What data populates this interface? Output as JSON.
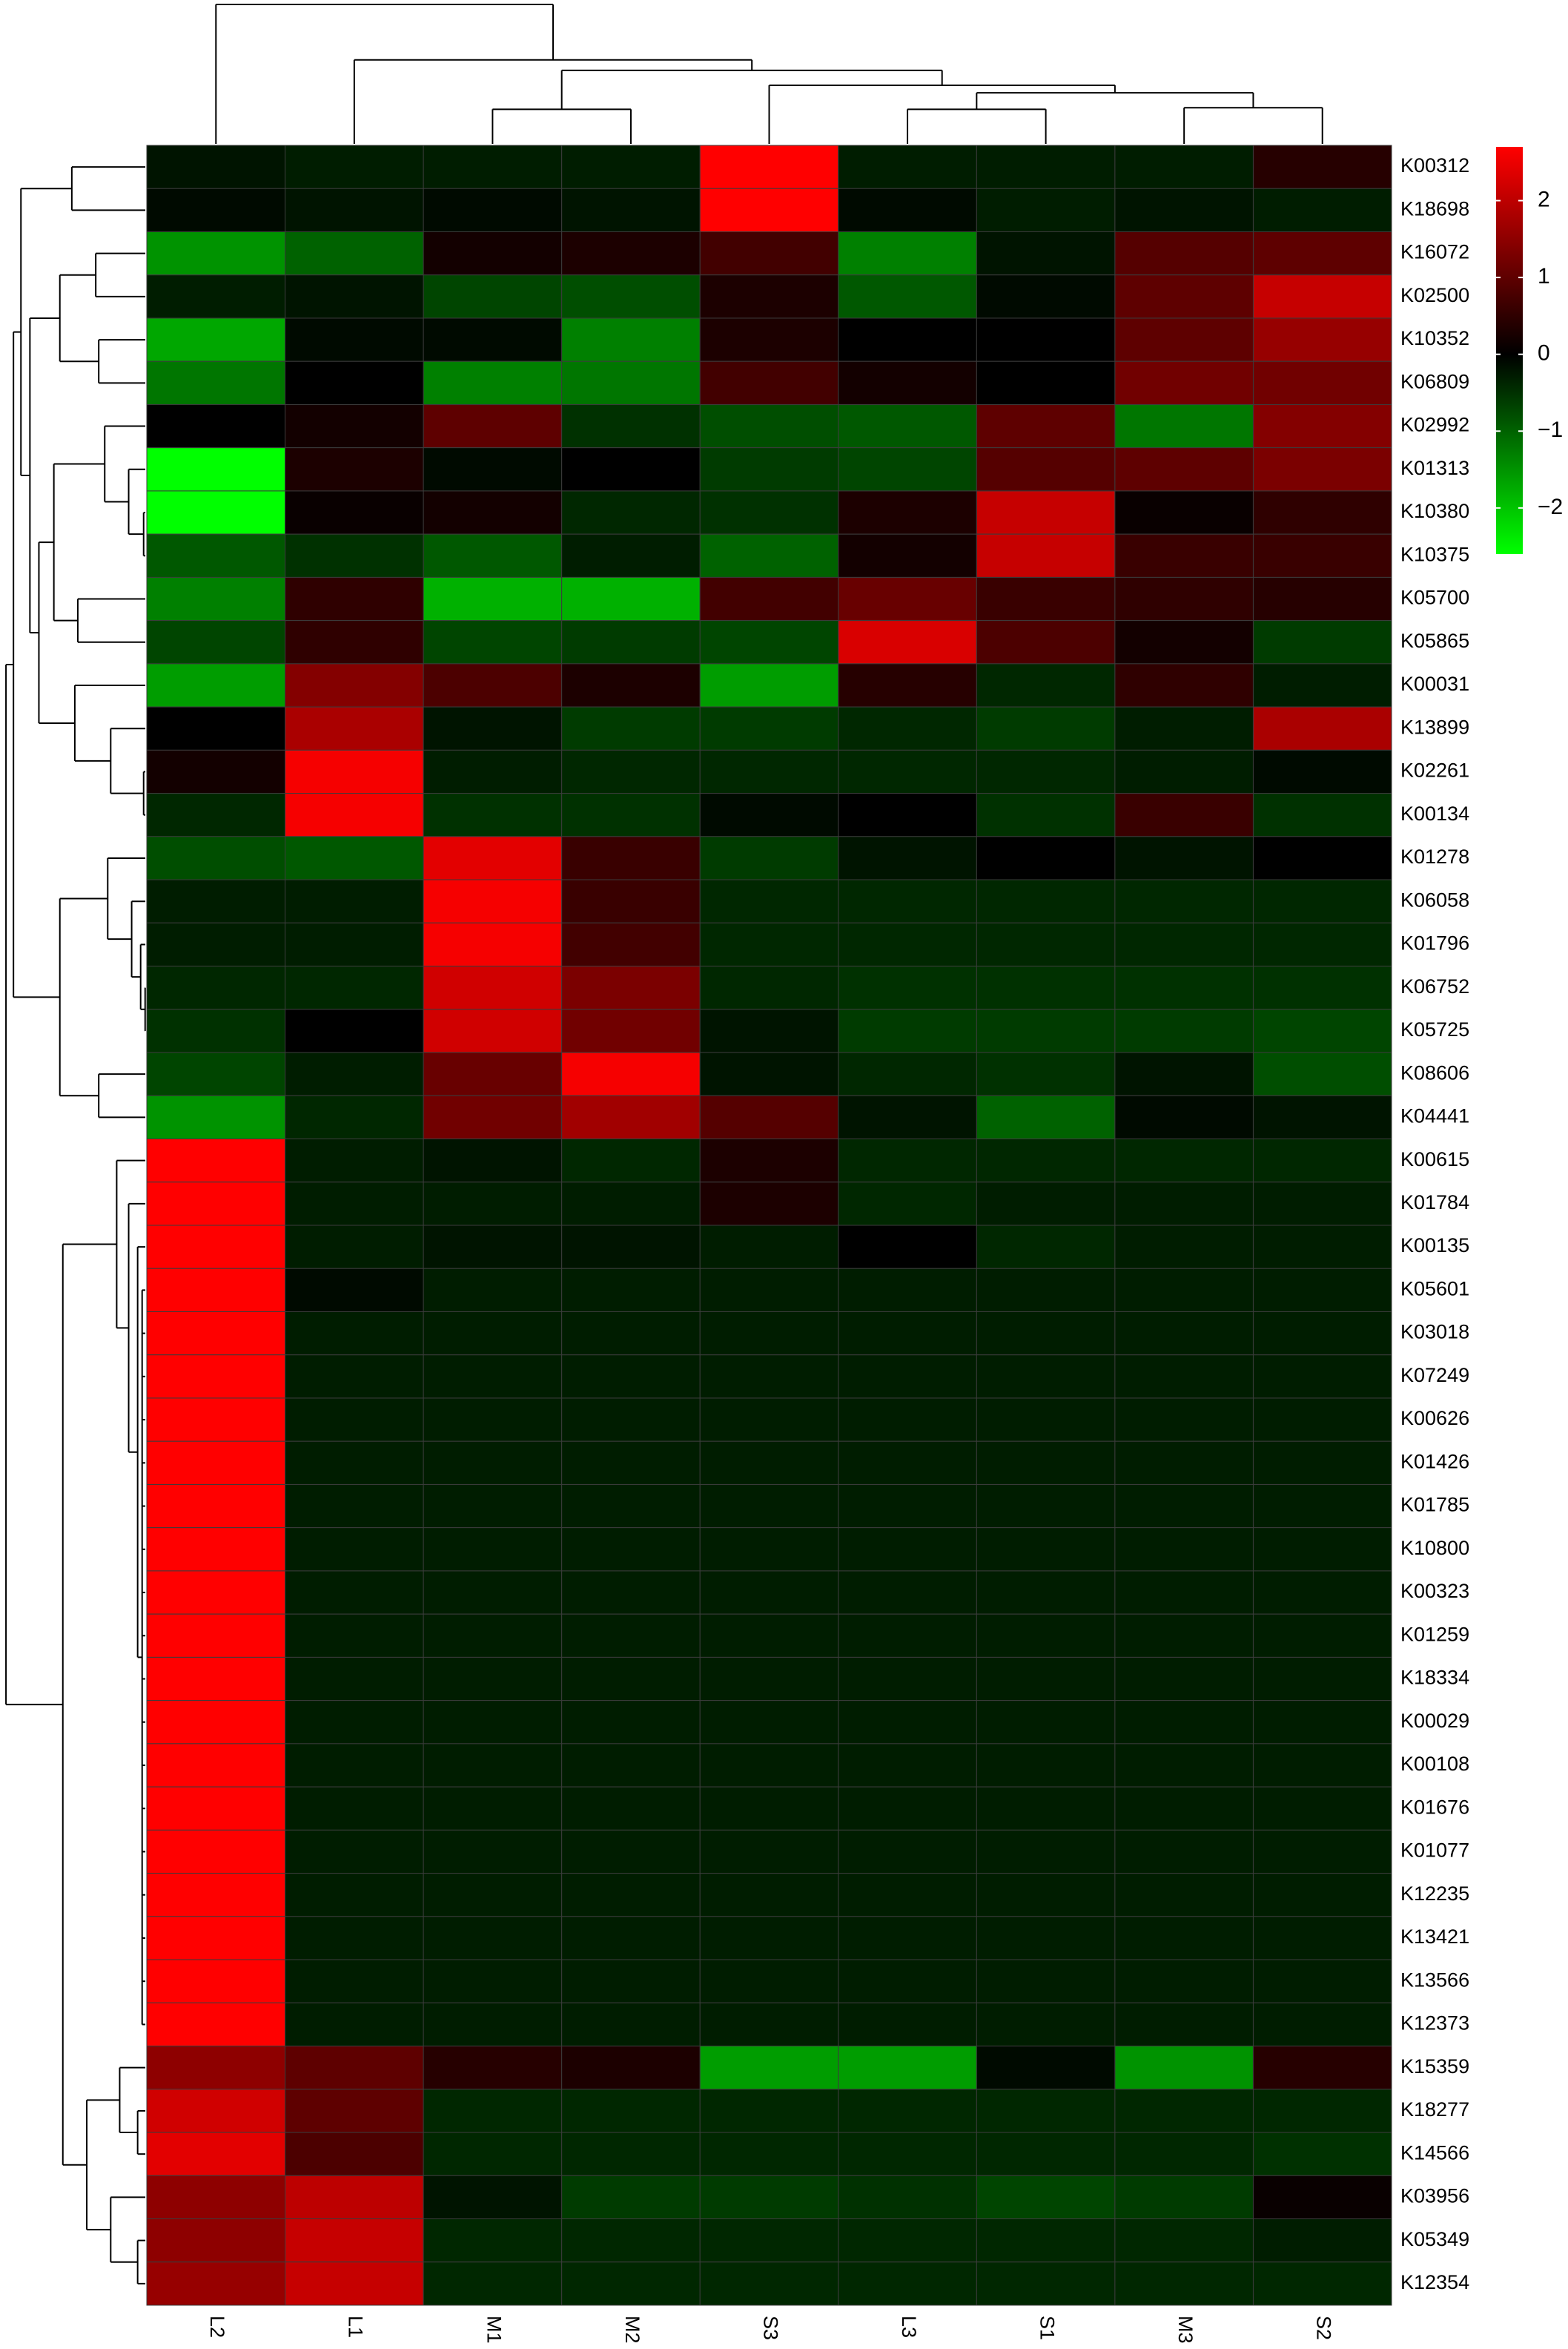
{
  "chart_data": {
    "type": "heatmap",
    "x": [
      "L2",
      "L1",
      "M1",
      "M2",
      "S3",
      "L3",
      "S1",
      "M3",
      "S2"
    ],
    "y": [
      "K00312",
      "K18698",
      "K16072",
      "K02500",
      "K10352",
      "K06809",
      "K02992",
      "K01313",
      "K10380",
      "K10375",
      "K05700",
      "K05865",
      "K00031",
      "K13899",
      "K02261",
      "K00134",
      "K01278",
      "K06058",
      "K01796",
      "K06752",
      "K05725",
      "K08606",
      "K04441",
      "K00615",
      "K01784",
      "K00135",
      "K05601",
      "K03018",
      "K07249",
      "K00626",
      "K01426",
      "K01785",
      "K10800",
      "K00323",
      "K01259",
      "K18334",
      "K00029",
      "K00108",
      "K01676",
      "K01077",
      "K12235",
      "K13421",
      "K13566",
      "K12373",
      "K15359",
      "K18277",
      "K14566",
      "K03956",
      "K05349",
      "K12354"
    ],
    "values": [
      [
        -0.2,
        -0.3,
        -0.3,
        -0.3,
        2.7,
        -0.3,
        -0.3,
        -0.3,
        0.4
      ],
      [
        -0.1,
        -0.2,
        -0.1,
        -0.2,
        2.7,
        -0.1,
        -0.3,
        -0.2,
        -0.3
      ],
      [
        -1.5,
        -1.0,
        0.2,
        0.3,
        0.7,
        -1.3,
        -0.2,
        0.9,
        1.0
      ],
      [
        -0.3,
        -0.2,
        -0.7,
        -0.8,
        0.3,
        -0.9,
        -0.1,
        1.0,
        2.1
      ],
      [
        -1.7,
        -0.1,
        -0.1,
        -1.3,
        0.3,
        0.0,
        0.0,
        1.0,
        1.6
      ],
      [
        -1.2,
        0.0,
        -1.3,
        -1.2,
        0.7,
        0.2,
        0.0,
        1.2,
        1.2
      ],
      [
        0.0,
        0.2,
        1.0,
        -0.5,
        -0.8,
        -0.9,
        1.0,
        -1.2,
        1.4
      ],
      [
        -2.6,
        0.3,
        -0.1,
        0.0,
        -0.6,
        -0.7,
        0.9,
        1.0,
        1.3
      ],
      [
        -2.6,
        0.1,
        0.2,
        -0.4,
        -0.5,
        0.3,
        2.1,
        0.1,
        0.5
      ],
      [
        -0.9,
        -0.5,
        -0.9,
        -0.3,
        -1.0,
        0.2,
        2.1,
        0.6,
        0.6
      ],
      [
        -1.3,
        0.5,
        -1.8,
        -1.8,
        0.7,
        1.1,
        0.6,
        0.5,
        0.4
      ],
      [
        -0.7,
        0.5,
        -0.7,
        -0.6,
        -0.7,
        2.3,
        0.8,
        0.2,
        -0.6
      ],
      [
        -1.6,
        1.4,
        0.8,
        0.3,
        -1.6,
        0.4,
        -0.4,
        0.5,
        -0.3
      ],
      [
        0.0,
        1.8,
        -0.2,
        -0.6,
        -0.6,
        -0.4,
        -0.6,
        -0.3,
        1.8
      ],
      [
        0.2,
        2.6,
        -0.3,
        -0.4,
        -0.4,
        -0.4,
        -0.4,
        -0.3,
        -0.1
      ],
      [
        -0.4,
        2.6,
        -0.5,
        -0.5,
        -0.1,
        0.0,
        -0.5,
        0.6,
        -0.5
      ],
      [
        -0.8,
        -0.9,
        2.4,
        0.6,
        -0.6,
        -0.2,
        0.0,
        -0.2,
        0.0
      ],
      [
        -0.3,
        -0.3,
        2.6,
        0.6,
        -0.4,
        -0.4,
        -0.4,
        -0.4,
        -0.4
      ],
      [
        -0.3,
        -0.3,
        2.6,
        0.7,
        -0.4,
        -0.4,
        -0.4,
        -0.4,
        -0.4
      ],
      [
        -0.4,
        -0.4,
        2.2,
        1.3,
        -0.4,
        -0.5,
        -0.5,
        -0.5,
        -0.5
      ],
      [
        -0.5,
        0.0,
        2.2,
        1.2,
        -0.2,
        -0.6,
        -0.6,
        -0.6,
        -0.7
      ],
      [
        -0.7,
        -0.3,
        1.1,
        2.6,
        -0.2,
        -0.4,
        -0.5,
        -0.2,
        -0.8
      ],
      [
        -1.5,
        -0.4,
        1.2,
        1.7,
        0.9,
        -0.2,
        -1.0,
        -0.1,
        -0.2
      ],
      [
        2.7,
        -0.3,
        -0.2,
        -0.4,
        0.3,
        -0.4,
        -0.4,
        -0.4,
        -0.4
      ],
      [
        2.7,
        -0.3,
        -0.3,
        -0.3,
        0.3,
        -0.4,
        -0.3,
        -0.3,
        -0.3
      ],
      [
        2.7,
        -0.3,
        -0.2,
        -0.2,
        -0.3,
        0.0,
        -0.4,
        -0.3,
        -0.3
      ],
      [
        2.7,
        -0.1,
        -0.3,
        -0.3,
        -0.3,
        -0.3,
        -0.3,
        -0.3,
        -0.3
      ],
      [
        2.7,
        -0.3,
        -0.3,
        -0.3,
        -0.3,
        -0.3,
        -0.3,
        -0.3,
        -0.3
      ],
      [
        2.7,
        -0.3,
        -0.3,
        -0.3,
        -0.3,
        -0.3,
        -0.3,
        -0.3,
        -0.3
      ],
      [
        2.7,
        -0.3,
        -0.3,
        -0.3,
        -0.3,
        -0.3,
        -0.3,
        -0.3,
        -0.3
      ],
      [
        2.7,
        -0.3,
        -0.3,
        -0.3,
        -0.3,
        -0.3,
        -0.3,
        -0.3,
        -0.3
      ],
      [
        2.7,
        -0.3,
        -0.3,
        -0.3,
        -0.3,
        -0.3,
        -0.3,
        -0.3,
        -0.3
      ],
      [
        2.7,
        -0.3,
        -0.3,
        -0.3,
        -0.3,
        -0.3,
        -0.3,
        -0.3,
        -0.3
      ],
      [
        2.7,
        -0.3,
        -0.3,
        -0.3,
        -0.3,
        -0.3,
        -0.3,
        -0.3,
        -0.3
      ],
      [
        2.7,
        -0.3,
        -0.3,
        -0.3,
        -0.3,
        -0.3,
        -0.3,
        -0.3,
        -0.3
      ],
      [
        2.7,
        -0.3,
        -0.3,
        -0.3,
        -0.3,
        -0.3,
        -0.3,
        -0.3,
        -0.3
      ],
      [
        2.7,
        -0.3,
        -0.3,
        -0.3,
        -0.3,
        -0.3,
        -0.3,
        -0.3,
        -0.3
      ],
      [
        2.7,
        -0.3,
        -0.3,
        -0.3,
        -0.3,
        -0.3,
        -0.3,
        -0.3,
        -0.3
      ],
      [
        2.7,
        -0.3,
        -0.3,
        -0.3,
        -0.3,
        -0.3,
        -0.3,
        -0.3,
        -0.3
      ],
      [
        2.7,
        -0.3,
        -0.3,
        -0.3,
        -0.3,
        -0.3,
        -0.3,
        -0.3,
        -0.3
      ],
      [
        2.7,
        -0.3,
        -0.3,
        -0.3,
        -0.3,
        -0.3,
        -0.3,
        -0.3,
        -0.3
      ],
      [
        2.7,
        -0.3,
        -0.3,
        -0.3,
        -0.3,
        -0.3,
        -0.3,
        -0.3,
        -0.3
      ],
      [
        2.7,
        -0.3,
        -0.3,
        -0.3,
        -0.3,
        -0.3,
        -0.3,
        -0.3,
        -0.3
      ],
      [
        2.7,
        -0.3,
        -0.3,
        -0.3,
        -0.3,
        -0.3,
        -0.3,
        -0.3,
        -0.3
      ],
      [
        1.5,
        1.0,
        0.4,
        0.3,
        -1.6,
        -1.6,
        -0.1,
        -1.5,
        0.4
      ],
      [
        2.2,
        1.0,
        -0.4,
        -0.4,
        -0.4,
        -0.4,
        -0.4,
        -0.4,
        -0.4
      ],
      [
        2.4,
        0.8,
        -0.4,
        -0.4,
        -0.4,
        -0.4,
        -0.4,
        -0.4,
        -0.5
      ],
      [
        1.5,
        2.0,
        -0.2,
        -0.6,
        -0.6,
        -0.5,
        -0.7,
        -0.6,
        0.1
      ],
      [
        1.5,
        2.1,
        -0.4,
        -0.4,
        -0.4,
        -0.4,
        -0.4,
        -0.4,
        -0.3
      ],
      [
        1.6,
        2.1,
        -0.4,
        -0.4,
        -0.4,
        -0.4,
        -0.4,
        -0.4,
        -0.4
      ]
    ],
    "zlim": [
      -2.6,
      2.7
    ],
    "zticks": [
      2,
      1,
      0,
      {
        "value": -1,
        "label": "−1"
      },
      {
        "value": -2,
        "label": "−2"
      }
    ],
    "colors": [
      "#00ff00",
      "#000000",
      "#ff0000"
    ]
  }
}
